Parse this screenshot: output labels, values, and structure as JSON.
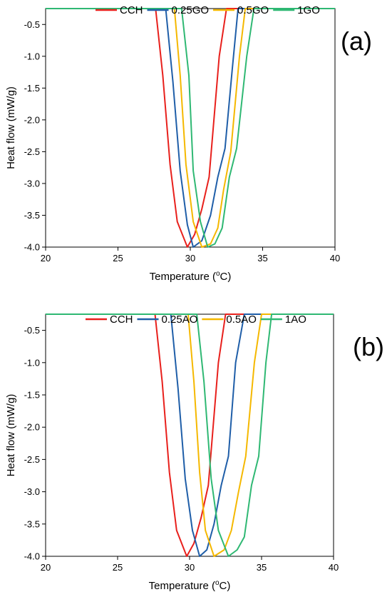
{
  "chart_data": [
    {
      "type": "line",
      "panel_label": "(a)",
      "xlabel": "Temperature (",
      "xlabel_sup": "o",
      "xlabel_end": "C)",
      "ylabel": "Heat flow (mW/g)",
      "xlim": [
        20,
        40
      ],
      "ylim": [
        -4.0,
        -0.25
      ],
      "xticks": [
        20,
        25,
        30,
        35,
        40
      ],
      "xtick_labels": [
        "20",
        "25",
        "30",
        "35",
        "40"
      ],
      "yticks": [
        -0.5,
        -1.0,
        -1.5,
        -2.0,
        -2.5,
        -3.0,
        -3.5,
        -4.0
      ],
      "ytick_labels": [
        "-0.5",
        "-1.0",
        "-1.5",
        "-2.0",
        "-2.5",
        "-3.0",
        "-3.5",
        "-4.0"
      ],
      "series": [
        {
          "name": "CCH",
          "color": "#e8201c",
          "x": [
            20,
            27.6,
            28.1,
            28.6,
            29.1,
            29.8,
            30.3,
            30.8,
            31.3,
            32.0,
            32.5,
            40
          ],
          "y": [
            -0.25,
            -0.25,
            -1.3,
            -2.7,
            -3.6,
            -4.0,
            -3.8,
            -3.4,
            -2.9,
            -1.0,
            -0.25,
            -0.25
          ]
        },
        {
          "name": "0.25GO",
          "color": "#1f5ea8",
          "x": [
            20,
            28.3,
            28.8,
            29.3,
            29.8,
            30.2,
            30.8,
            31.4,
            31.9,
            32.4,
            32.9,
            33.3,
            40
          ],
          "y": [
            -0.25,
            -0.25,
            -1.4,
            -2.8,
            -3.65,
            -4.0,
            -3.9,
            -3.5,
            -2.9,
            -2.45,
            -1.2,
            -0.25,
            -0.25
          ]
        },
        {
          "name": "0.5GO",
          "color": "#f5b800",
          "x": [
            20,
            28.9,
            29.3,
            29.7,
            30.2,
            30.8,
            31.4,
            31.9,
            32.3,
            32.8,
            33.4,
            33.8,
            40
          ],
          "y": [
            -0.25,
            -0.25,
            -1.3,
            -2.7,
            -3.6,
            -4.0,
            -3.95,
            -3.7,
            -3.1,
            -2.5,
            -1.0,
            -0.25,
            -0.25
          ]
        },
        {
          "name": "1GO",
          "color": "#2fb873",
          "x": [
            20,
            29.4,
            29.9,
            30.2,
            30.7,
            31.2,
            31.7,
            32.2,
            32.7,
            33.2,
            33.9,
            34.4,
            40
          ],
          "y": [
            -0.25,
            -0.25,
            -1.3,
            -2.8,
            -3.6,
            -4.0,
            -3.95,
            -3.7,
            -2.9,
            -2.45,
            -1.0,
            -0.25,
            -0.25
          ]
        }
      ]
    },
    {
      "type": "line",
      "panel_label": "(b)",
      "xlabel": "Temperature (",
      "xlabel_sup": "o",
      "xlabel_end": "C)",
      "ylabel": "Heat flow (mW/g)",
      "xlim": [
        20,
        40
      ],
      "ylim": [
        -4.0,
        -0.25
      ],
      "xticks": [
        20,
        25,
        30,
        35,
        40
      ],
      "xtick_labels": [
        "20",
        "25",
        "30",
        "35",
        "40"
      ],
      "yticks": [
        -0.5,
        -1.0,
        -1.5,
        -2.0,
        -2.5,
        -3.0,
        -3.5,
        -4.0
      ],
      "ytick_labels": [
        "-0.5",
        "-1.0",
        "-1.5",
        "-2.0",
        "-2.5",
        "-3.0",
        "-3.5",
        "-4.0"
      ],
      "series": [
        {
          "name": "CCH",
          "color": "#e8201c",
          "x": [
            20,
            27.6,
            28.1,
            28.6,
            29.1,
            29.8,
            30.3,
            30.8,
            31.3,
            32.0,
            32.5,
            40
          ],
          "y": [
            -0.25,
            -0.25,
            -1.3,
            -2.7,
            -3.6,
            -4.0,
            -3.8,
            -3.4,
            -2.9,
            -1.0,
            -0.25,
            -0.25
          ]
        },
        {
          "name": "0.25AO",
          "color": "#1f5ea8",
          "x": [
            20,
            28.7,
            29.2,
            29.7,
            30.2,
            30.7,
            31.2,
            31.7,
            32.2,
            32.7,
            33.2,
            33.8,
            40
          ],
          "y": [
            -0.25,
            -0.25,
            -1.4,
            -2.8,
            -3.6,
            -4.0,
            -3.9,
            -3.5,
            -2.9,
            -2.45,
            -1.0,
            -0.25,
            -0.25
          ]
        },
        {
          "name": "0.5AO",
          "color": "#f5b800",
          "x": [
            20,
            29.9,
            30.3,
            30.7,
            31.1,
            31.7,
            32.4,
            32.9,
            33.4,
            33.9,
            34.5,
            35.0,
            40
          ],
          "y": [
            -0.25,
            -0.25,
            -1.3,
            -2.7,
            -3.6,
            -4.0,
            -3.9,
            -3.6,
            -3.0,
            -2.45,
            -1.0,
            -0.25,
            -0.25
          ]
        },
        {
          "name": "1AO",
          "color": "#2fb873",
          "x": [
            20,
            30.5,
            31.0,
            31.5,
            32.0,
            32.7,
            33.3,
            33.8,
            34.3,
            34.8,
            35.3,
            35.7,
            40
          ],
          "y": [
            -0.25,
            -0.25,
            -1.3,
            -2.8,
            -3.6,
            -4.0,
            -3.9,
            -3.7,
            -2.9,
            -2.45,
            -1.0,
            -0.25,
            -0.25
          ]
        }
      ]
    }
  ]
}
